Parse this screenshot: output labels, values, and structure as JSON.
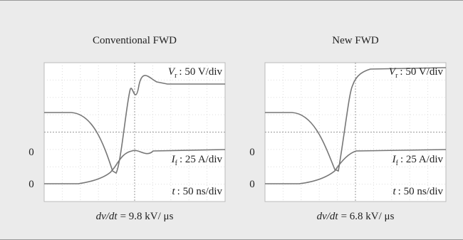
{
  "panels": [
    {
      "title": "Conventional FWD",
      "vr": {
        "symbol": "V",
        "sub": "r",
        "scale": ": 50 V/div"
      },
      "if": {
        "symbol": "I",
        "sub": "f",
        "scale": ": 25 A/div"
      },
      "t": {
        "symbol": "t",
        "scale": ": 50 ns/div"
      },
      "zero_labels": [
        "0",
        "0"
      ],
      "caption": {
        "symbol": "dv/dt",
        "value": "= 9.8 kV/ μs"
      }
    },
    {
      "title": "New FWD",
      "vr": {
        "symbol": "V",
        "sub": "r",
        "scale": ": 50 V/div"
      },
      "if": {
        "symbol": "I",
        "sub": "f",
        "scale": ": 25 A/div"
      },
      "t": {
        "symbol": "t",
        "scale": ": 50 ns/div"
      },
      "zero_labels": [
        "0",
        "0"
      ],
      "caption": {
        "symbol": "dv/dt",
        "value": "= 6.8 kV/ μs"
      }
    }
  ]
}
